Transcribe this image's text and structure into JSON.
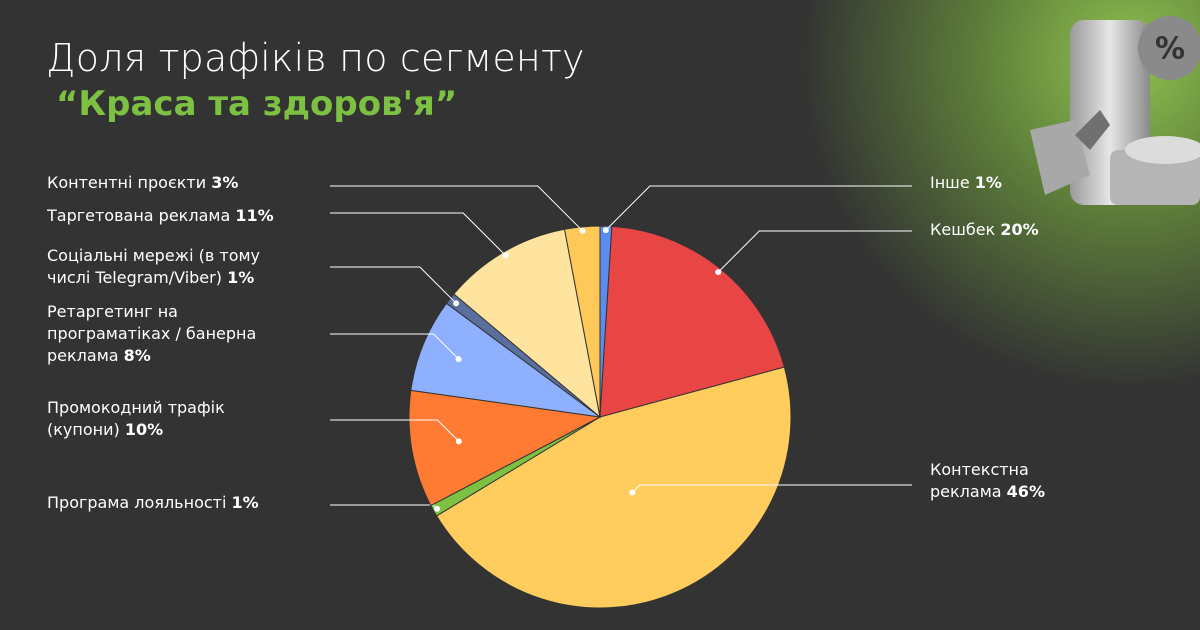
{
  "chart_data": {
    "type": "pie",
    "title": "Доля трафіків по сегменту",
    "subtitle": "“Краса та здоров'я”",
    "badge": "%",
    "categories": [
      "Інше",
      "Кешбек",
      "Контекстна реклама",
      "Програма лояльності",
      "Промокодний трафік (купони)",
      "Ретаргетинг на програматіках / банерна реклама",
      "Соціальні мережі (в тому числі Telegram/Viber)",
      "Таргетована реклама",
      "Контентні проєкти"
    ],
    "values": [
      1,
      20,
      46,
      1,
      10,
      8,
      1,
      11,
      3
    ],
    "value_labels": [
      "1%",
      "20%",
      "46%",
      "1%",
      "10%",
      "8%",
      "1%",
      "11%",
      "3%"
    ],
    "colors": [
      "#5b8cf0",
      "#e84545",
      "#ffcd5e",
      "#7cc142",
      "#ff7a33",
      "#8fb0ff",
      "#5a6f9e",
      "#ffe4a0",
      "#ffc95a"
    ]
  }
}
